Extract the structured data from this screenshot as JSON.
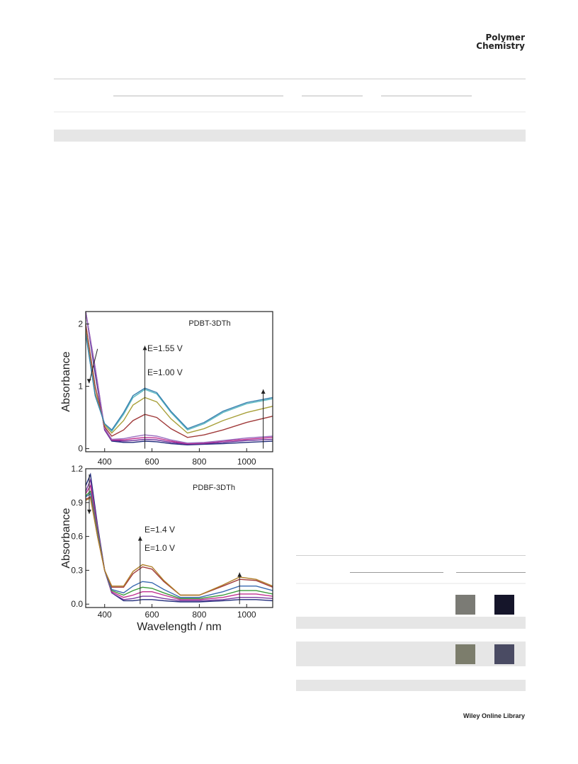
{
  "header": {
    "journal_line1": "Polymer",
    "journal_line2": "Chemistry"
  },
  "footer": {
    "publisher": "Wiley Online Library"
  },
  "swatches": [
    "#7b7b75",
    "#15152a",
    "#7c7d6c",
    "#4a4b63"
  ],
  "chart_data": [
    {
      "type": "line",
      "label": "PDBT-3DTh",
      "annotations": [
        "E=1.55 V",
        "E=1.00 V"
      ],
      "xlabel": "",
      "ylabel": "Absorbance",
      "xlim": [
        320,
        1110
      ],
      "ylim": [
        -0.05,
        2.2
      ],
      "xticks": [
        "400",
        "600",
        "800",
        "1000"
      ],
      "yticks": [
        "0",
        "1",
        "2"
      ],
      "ytick_values": [
        0,
        1,
        2
      ],
      "arrows": [
        {
          "x": 570,
          "from": 0,
          "to": 1.65
        },
        {
          "x": 1070,
          "from": 0,
          "to": 0.95
        },
        {
          "x": 370,
          "from": 1.6,
          "to": 1.05
        }
      ],
      "series": [
        {
          "color": "#1f2a7a",
          "x": [
            320,
            360,
            400,
            430,
            480,
            520,
            570,
            620,
            680,
            750,
            820,
            900,
            1000,
            1110
          ],
          "y": [
            2.2,
            1.2,
            0.3,
            0.12,
            0.1,
            0.1,
            0.12,
            0.11,
            0.08,
            0.06,
            0.07,
            0.08,
            0.1,
            0.12
          ]
        },
        {
          "color": "#6a2a9a",
          "x": [
            320,
            360,
            400,
            430,
            480,
            520,
            570,
            620,
            680,
            750,
            820,
            900,
            1000,
            1110
          ],
          "y": [
            2.2,
            1.25,
            0.3,
            0.13,
            0.12,
            0.13,
            0.15,
            0.14,
            0.1,
            0.07,
            0.08,
            0.1,
            0.13,
            0.15
          ]
        },
        {
          "color": "#c03090",
          "x": [
            320,
            360,
            400,
            430,
            480,
            520,
            570,
            620,
            680,
            750,
            820,
            900,
            1000,
            1110
          ],
          "y": [
            2.2,
            1.3,
            0.32,
            0.14,
            0.14,
            0.16,
            0.18,
            0.17,
            0.12,
            0.08,
            0.09,
            0.12,
            0.15,
            0.18
          ]
        },
        {
          "color": "#9a6fc0",
          "x": [
            320,
            360,
            400,
            430,
            480,
            520,
            570,
            620,
            680,
            750,
            820,
            900,
            1000,
            1110
          ],
          "y": [
            2.2,
            1.3,
            0.33,
            0.15,
            0.16,
            0.19,
            0.22,
            0.2,
            0.14,
            0.09,
            0.1,
            0.13,
            0.17,
            0.2
          ]
        },
        {
          "color": "#a03a3a",
          "x": [
            320,
            360,
            400,
            430,
            480,
            520,
            570,
            620,
            680,
            750,
            820,
            900,
            1000,
            1110
          ],
          "y": [
            2.0,
            1.0,
            0.35,
            0.2,
            0.3,
            0.45,
            0.55,
            0.5,
            0.32,
            0.18,
            0.22,
            0.3,
            0.42,
            0.52
          ]
        },
        {
          "color": "#a8a03a",
          "x": [
            320,
            360,
            400,
            430,
            480,
            520,
            570,
            620,
            680,
            750,
            820,
            900,
            1000,
            1110
          ],
          "y": [
            1.9,
            0.9,
            0.38,
            0.25,
            0.45,
            0.7,
            0.82,
            0.75,
            0.48,
            0.25,
            0.32,
            0.45,
            0.58,
            0.68
          ]
        },
        {
          "color": "#5ab8c0",
          "x": [
            320,
            360,
            400,
            430,
            480,
            520,
            570,
            620,
            680,
            750,
            820,
            900,
            1000,
            1110
          ],
          "y": [
            1.85,
            0.85,
            0.4,
            0.28,
            0.55,
            0.82,
            0.95,
            0.88,
            0.58,
            0.3,
            0.4,
            0.58,
            0.72,
            0.8
          ]
        },
        {
          "color": "#3a80b0",
          "x": [
            320,
            360,
            400,
            430,
            480,
            520,
            570,
            620,
            680,
            750,
            820,
            900,
            1000,
            1110
          ],
          "y": [
            1.85,
            0.85,
            0.4,
            0.3,
            0.58,
            0.85,
            0.97,
            0.9,
            0.6,
            0.32,
            0.42,
            0.6,
            0.74,
            0.82
          ]
        }
      ]
    },
    {
      "type": "line",
      "label": "PDBF-3DTh",
      "annotations": [
        "E=1.4 V",
        "E=1.0 V"
      ],
      "xlabel": "Wavelength / nm",
      "ylabel": "Absorbance",
      "xlim": [
        320,
        1110
      ],
      "ylim": [
        -0.03,
        1.2
      ],
      "xticks": [
        "400",
        "600",
        "800",
        "1000"
      ],
      "yticks": [
        "0.0",
        "0.3",
        "0.6",
        "0.9",
        "1.2"
      ],
      "ytick_values": [
        0,
        0.3,
        0.6,
        0.9,
        1.2
      ],
      "arrows": [
        {
          "x": 335,
          "from": 1.15,
          "to": 0.8
        },
        {
          "x": 550,
          "from": 0,
          "to": 0.6
        },
        {
          "x": 970,
          "from": 0,
          "to": 0.28
        }
      ],
      "series": [
        {
          "color": "#1f2a7a",
          "x": [
            320,
            340,
            370,
            400,
            430,
            480,
            520,
            560,
            600,
            650,
            720,
            800,
            900,
            970,
            1040,
            1110
          ],
          "y": [
            1.05,
            1.15,
            0.7,
            0.3,
            0.1,
            0.03,
            0.03,
            0.04,
            0.04,
            0.03,
            0.02,
            0.02,
            0.03,
            0.04,
            0.04,
            0.03
          ]
        },
        {
          "color": "#7a3aa0",
          "x": [
            320,
            340,
            370,
            400,
            430,
            480,
            520,
            560,
            600,
            650,
            720,
            800,
            900,
            970,
            1040,
            1110
          ],
          "y": [
            1.0,
            1.1,
            0.68,
            0.3,
            0.1,
            0.04,
            0.05,
            0.07,
            0.07,
            0.05,
            0.03,
            0.03,
            0.04,
            0.06,
            0.06,
            0.05
          ]
        },
        {
          "color": "#c03090",
          "x": [
            320,
            340,
            370,
            400,
            430,
            480,
            520,
            560,
            600,
            650,
            720,
            800,
            900,
            970,
            1040,
            1110
          ],
          "y": [
            0.98,
            1.05,
            0.66,
            0.3,
            0.11,
            0.06,
            0.08,
            0.11,
            0.11,
            0.08,
            0.04,
            0.04,
            0.06,
            0.09,
            0.09,
            0.07
          ]
        },
        {
          "color": "#3a9a3a",
          "x": [
            320,
            340,
            370,
            400,
            430,
            480,
            520,
            560,
            600,
            650,
            720,
            800,
            900,
            970,
            1040,
            1110
          ],
          "y": [
            0.96,
            1.0,
            0.64,
            0.3,
            0.12,
            0.08,
            0.12,
            0.15,
            0.14,
            0.1,
            0.05,
            0.05,
            0.08,
            0.12,
            0.12,
            0.09
          ]
        },
        {
          "color": "#3a6ab0",
          "x": [
            320,
            340,
            370,
            400,
            430,
            480,
            520,
            560,
            600,
            650,
            720,
            800,
            900,
            970,
            1040,
            1110
          ],
          "y": [
            0.95,
            0.98,
            0.62,
            0.3,
            0.13,
            0.1,
            0.16,
            0.2,
            0.19,
            0.13,
            0.06,
            0.06,
            0.11,
            0.16,
            0.16,
            0.12
          ]
        },
        {
          "color": "#a03a3a",
          "x": [
            320,
            340,
            370,
            400,
            430,
            480,
            520,
            560,
            600,
            650,
            720,
            800,
            900,
            970,
            1040,
            1110
          ],
          "y": [
            0.93,
            0.95,
            0.6,
            0.3,
            0.15,
            0.15,
            0.27,
            0.33,
            0.31,
            0.2,
            0.08,
            0.08,
            0.16,
            0.22,
            0.21,
            0.15
          ]
        },
        {
          "color": "#b0802a",
          "x": [
            320,
            340,
            370,
            400,
            430,
            480,
            520,
            560,
            600,
            650,
            720,
            800,
            900,
            970,
            1040,
            1110
          ],
          "y": [
            0.92,
            0.94,
            0.6,
            0.3,
            0.16,
            0.16,
            0.29,
            0.35,
            0.33,
            0.21,
            0.08,
            0.08,
            0.17,
            0.24,
            0.22,
            0.16
          ]
        }
      ]
    }
  ]
}
